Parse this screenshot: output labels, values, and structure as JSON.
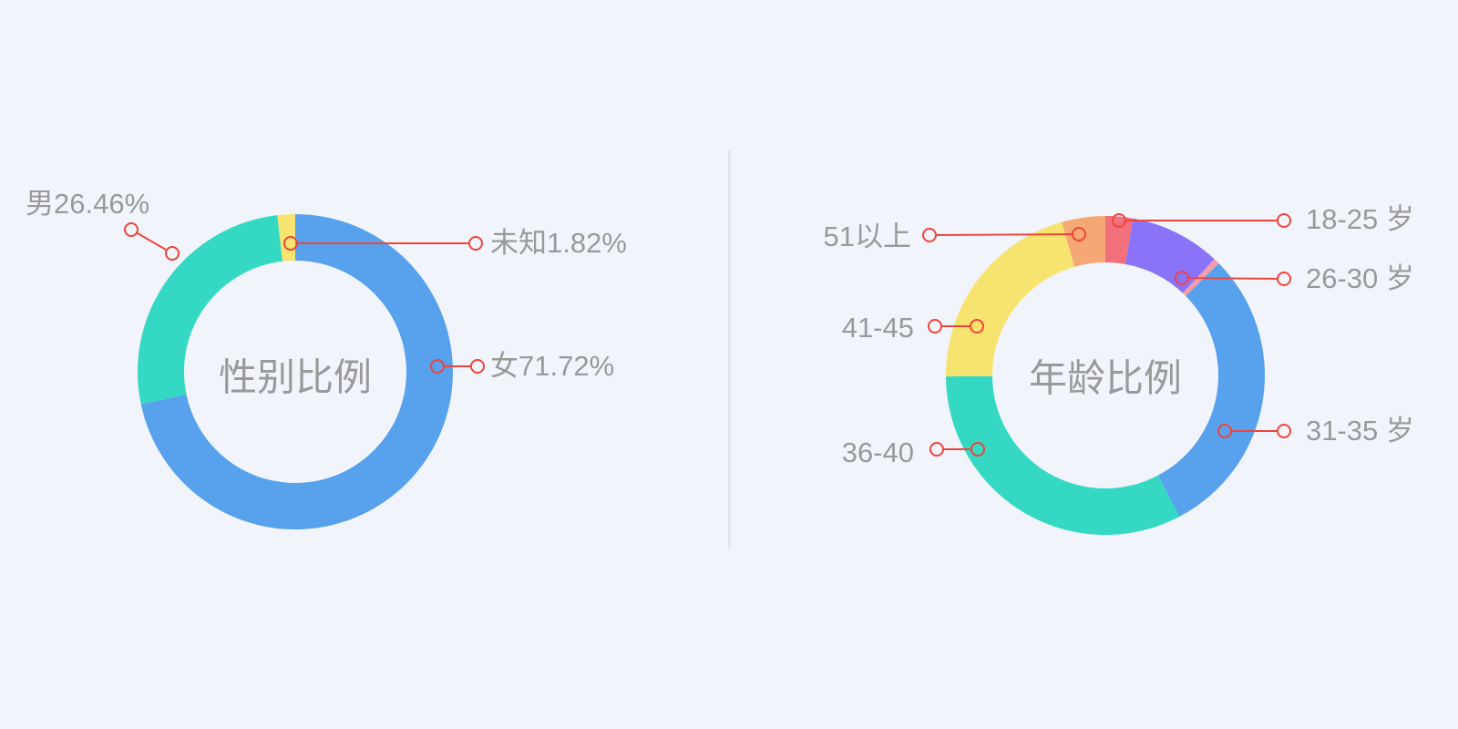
{
  "colors": {
    "background": "#f1f5fb",
    "divider": "#e3e6ec",
    "leader_line": "#ef443b",
    "label_text": "#999999"
  },
  "chart_data": [
    {
      "type": "pie",
      "subtype": "donut",
      "title": "性别比例",
      "legend_position": "none",
      "start_angle": "top",
      "direction": "clockwise",
      "segments": [
        {
          "name": "女",
          "value": 71.72,
          "label": "女71.72%",
          "color": "#58a1ec"
        },
        {
          "name": "男",
          "value": 26.46,
          "label": "男26.46%",
          "color": "#35d9c3"
        },
        {
          "name": "未知",
          "value": 1.82,
          "label": "未知1.82%",
          "color": "#f7e36f"
        }
      ]
    },
    {
      "type": "pie",
      "subtype": "donut",
      "title": "年龄比例",
      "legend_position": "none",
      "start_angle": "top",
      "direction": "clockwise",
      "segments": [
        {
          "name": "18-25 岁",
          "value": 2.8,
          "label": "18-25 岁",
          "color": "#f1707c"
        },
        {
          "name": "26-30 岁",
          "value": 9.2,
          "label": "26-30 岁",
          "color": "#8a73f8"
        },
        {
          "name": "",
          "value": 0.6,
          "label": "",
          "color": "#f59cab"
        },
        {
          "name": "31-35 岁",
          "value": 29.7,
          "label": "31-35 岁",
          "color": "#58a1ec"
        },
        {
          "name": "36-40",
          "value": 32.6,
          "label": "36-40",
          "color": "#35d9c3"
        },
        {
          "name": "41-45",
          "value": 20.7,
          "label": "41-45",
          "color": "#f7e36f"
        },
        {
          "name": "51以上",
          "value": 4.4,
          "label": "51以上",
          "color": "#f5a873"
        }
      ]
    }
  ]
}
